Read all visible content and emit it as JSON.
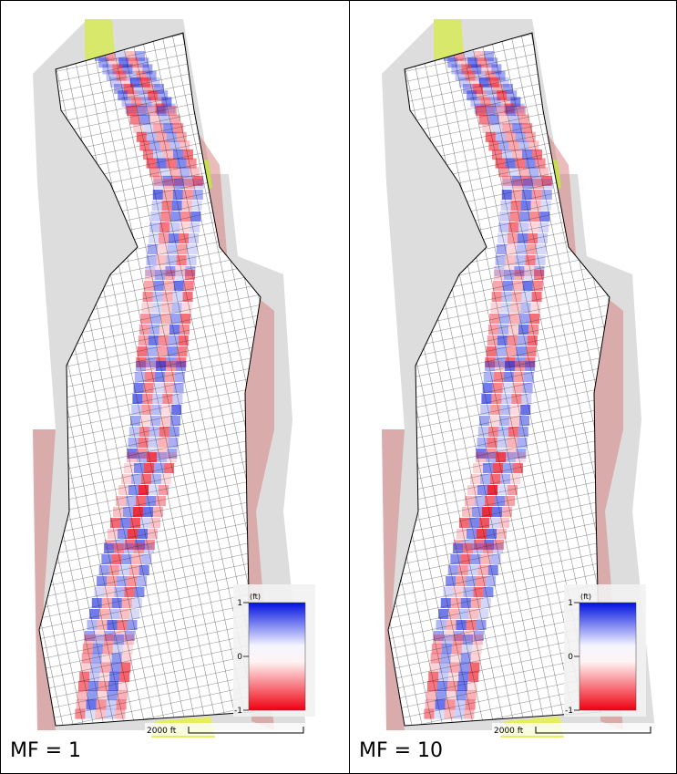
{
  "panels": [
    {
      "label": "MF = 1",
      "scale_bar": "2000 ft",
      "legend": {
        "unit": "(ft)",
        "ticks": [
          1,
          0,
          -1
        ]
      }
    },
    {
      "label": "MF = 10",
      "scale_bar": "2000 ft",
      "legend": {
        "unit": "(ft)",
        "ticks": [
          1,
          0,
          -1
        ]
      }
    }
  ]
}
